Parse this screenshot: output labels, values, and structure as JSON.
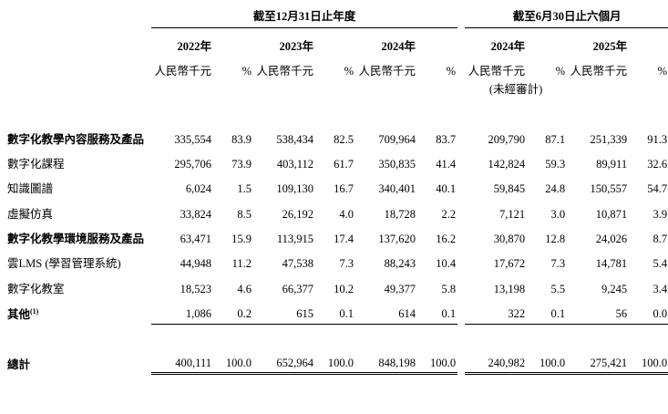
{
  "table": {
    "group_headers": [
      {
        "label": "截至12月31日止年度"
      },
      {
        "label": "截至6月30日止六個月"
      }
    ],
    "years": [
      "2022年",
      "2023年",
      "2024年",
      "2024年",
      "2025年"
    ],
    "unit_label": "人民幣千元",
    "percent_label": "%",
    "unaudited_label": "(未經審計)",
    "rows": [
      {
        "label": "數字化教學內容服務及產品",
        "bold": true,
        "values": [
          "335,554",
          "83.9",
          "538,434",
          "82.5",
          "709,964",
          "83.7",
          "209,790",
          "87.1",
          "251,339",
          "91.3"
        ]
      },
      {
        "label": "數字化課程",
        "bold": false,
        "values": [
          "295,706",
          "73.9",
          "403,112",
          "61.7",
          "350,835",
          "41.4",
          "142,824",
          "59.3",
          "89,911",
          "32.6"
        ]
      },
      {
        "label": "知識圖譜",
        "bold": false,
        "values": [
          "6,024",
          "1.5",
          "109,130",
          "16.7",
          "340,401",
          "40.1",
          "59,845",
          "24.8",
          "150,557",
          "54.7"
        ]
      },
      {
        "label": "虛擬仿真",
        "bold": false,
        "values": [
          "33,824",
          "8.5",
          "26,192",
          "4.0",
          "18,728",
          "2.2",
          "7,121",
          "3.0",
          "10,871",
          "3.9"
        ]
      },
      {
        "label": "數字化教學環境服務及產品",
        "bold": true,
        "values": [
          "63,471",
          "15.9",
          "113,915",
          "17.4",
          "137,620",
          "16.2",
          "30,870",
          "12.8",
          "24,026",
          "8.7"
        ]
      },
      {
        "label": "雲LMS (學習管理系統)",
        "bold": false,
        "values": [
          "44,948",
          "11.2",
          "47,538",
          "7.3",
          "88,243",
          "10.4",
          "17,672",
          "7.3",
          "14,781",
          "5.4"
        ]
      },
      {
        "label": "數字化教室",
        "bold": false,
        "values": [
          "18,523",
          "4.6",
          "66,377",
          "10.2",
          "49,377",
          "5.8",
          "13,198",
          "5.5",
          "9,245",
          "3.4"
        ]
      },
      {
        "label": "其他",
        "footnote": "(1)",
        "bold": true,
        "values": [
          "1,086",
          "0.2",
          "615",
          "0.1",
          "614",
          "0.1",
          "322",
          "0.1",
          "56",
          "0.0"
        ]
      }
    ],
    "total": {
      "label": "總計",
      "values": [
        "400,111",
        "100.0",
        "652,964",
        "100.0",
        "848,198",
        "100.0",
        "240,982",
        "100.0",
        "275,421",
        "100.0"
      ]
    }
  }
}
